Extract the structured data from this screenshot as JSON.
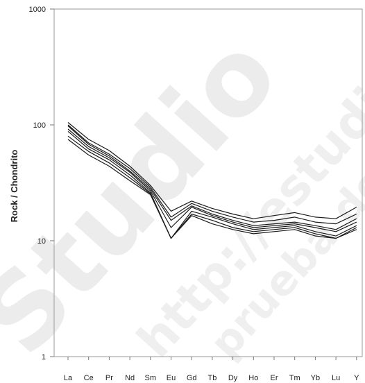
{
  "chart_data": {
    "type": "line",
    "title": "",
    "xlabel": "",
    "ylabel": "Rock / Chondrito",
    "yscale": "log",
    "ylim": [
      1,
      1000
    ],
    "y_ticks": [
      "1",
      "10",
      "100",
      "1000"
    ],
    "grid": false,
    "categories": [
      "La",
      "Ce",
      "Pr",
      "Nd",
      "Sm",
      "Eu",
      "Gd",
      "Tb",
      "Dy",
      "Ho",
      "Er",
      "Tm",
      "Yb",
      "Lu",
      "Y"
    ],
    "series": [
      {
        "values": [
          105,
          75,
          60,
          44,
          30,
          18,
          22,
          19,
          17,
          15.5,
          16.5,
          17.5,
          16,
          15.5,
          19.5
        ]
      },
      {
        "values": [
          100,
          70,
          56,
          42,
          29,
          16,
          21,
          18,
          16,
          14.5,
          15,
          16,
          14.5,
          14,
          17
        ]
      },
      {
        "values": [
          98,
          68,
          54,
          40,
          28,
          15,
          20,
          17,
          15,
          13.5,
          14,
          14.5,
          13.5,
          12.5,
          15.5
        ]
      },
      {
        "values": [
          92,
          65,
          52,
          39,
          27,
          13,
          19.5,
          16.5,
          14.5,
          13,
          13.5,
          14,
          13,
          12,
          14.5
        ]
      },
      {
        "values": [
          88,
          62,
          50,
          37,
          26,
          10.5,
          18,
          16,
          14,
          12.5,
          13,
          13.5,
          12,
          11,
          13.5
        ]
      },
      {
        "values": [
          80,
          59,
          47,
          35,
          25.5,
          10.5,
          17,
          15,
          13,
          12,
          12.5,
          13,
          11.5,
          10.5,
          13
        ]
      },
      {
        "values": [
          75,
          55,
          44,
          33,
          25,
          10.5,
          16.5,
          14,
          12.5,
          11.5,
          12,
          12.5,
          11,
          10.5,
          12.5
        ]
      }
    ],
    "line_color": "#1a1a1a",
    "watermark": [
      "Studio",
      "http://estudio",
      "prueba de"
    ]
  }
}
